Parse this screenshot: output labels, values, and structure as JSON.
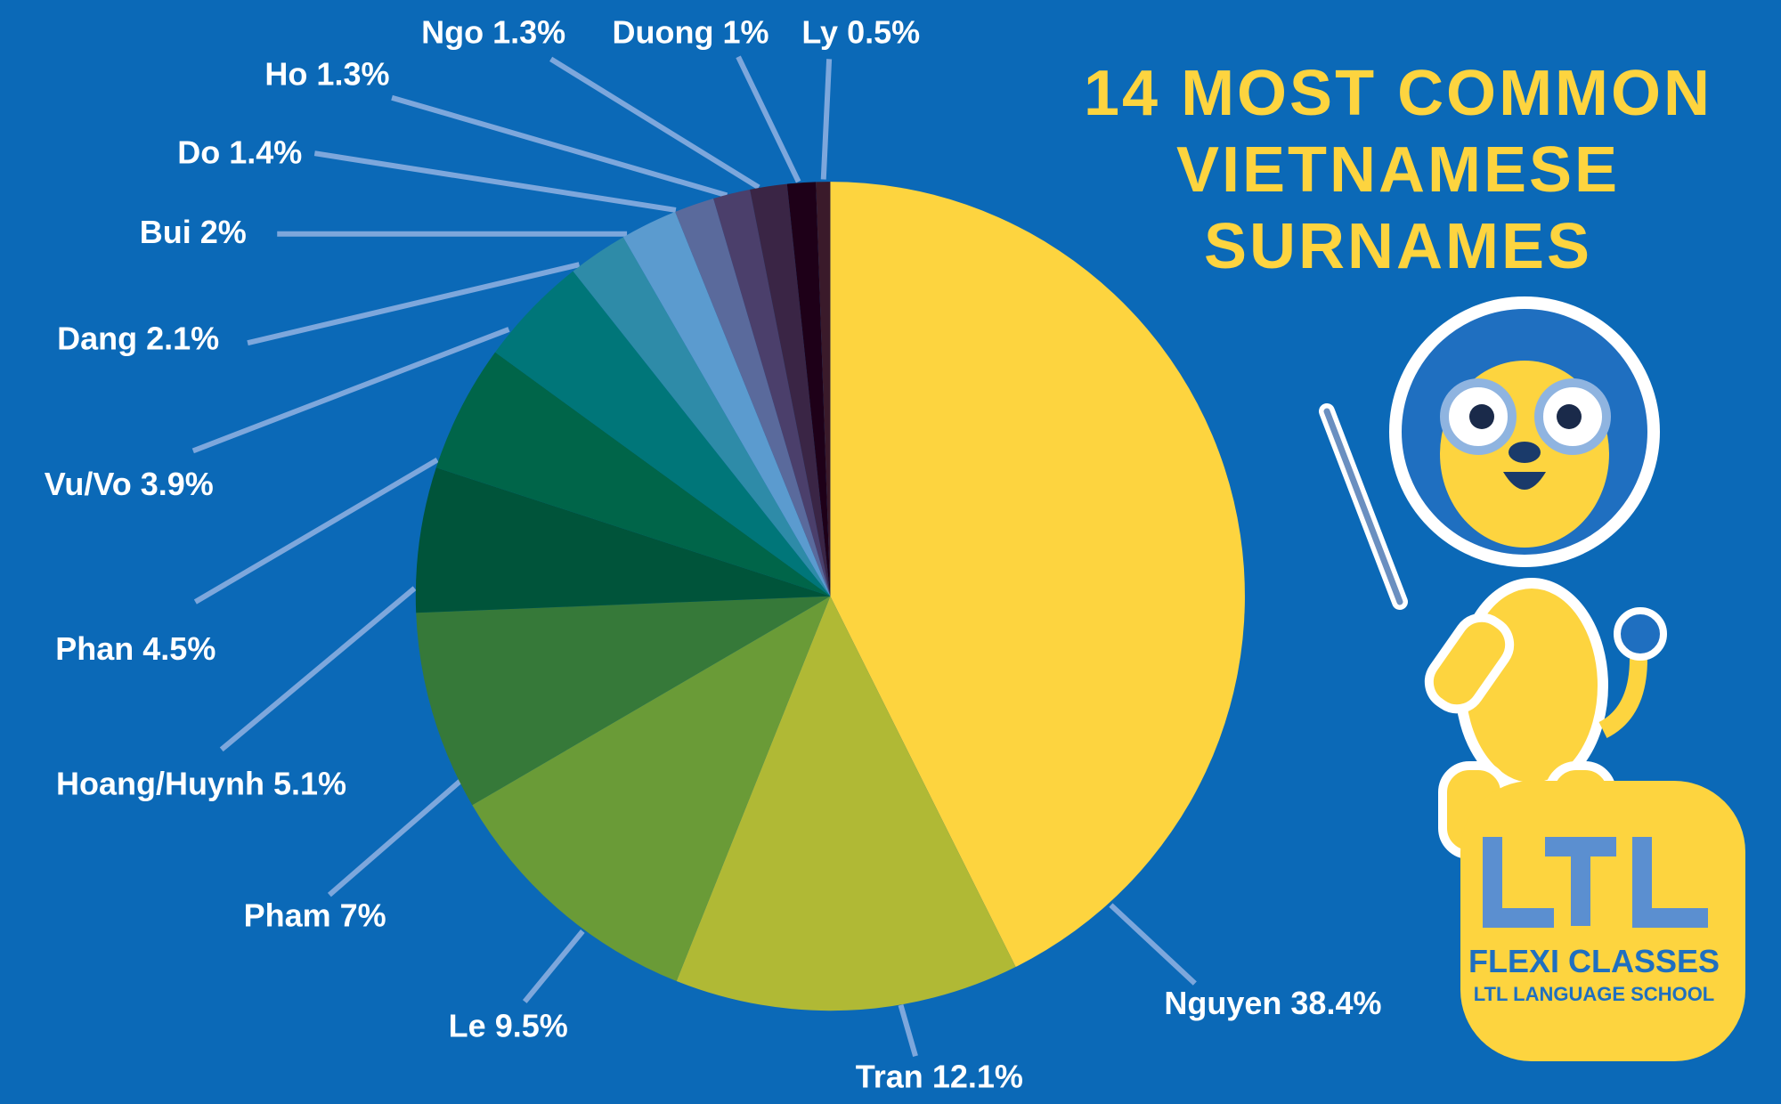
{
  "chart_data": {
    "type": "pie",
    "title": "14 MOST COMMON VIETNAMESE SURNAMES",
    "categories": [
      "Nguyen",
      "Tran",
      "Le",
      "Pham",
      "Hoang/Huynh",
      "Phan",
      "Vu/Vo",
      "Dang",
      "Bui",
      "Do",
      "Ho",
      "Ngo",
      "Duong",
      "Ly"
    ],
    "values": [
      38.4,
      12.1,
      9.5,
      7,
      5.1,
      4.5,
      3.9,
      2.1,
      2,
      1.4,
      1.3,
      1.3,
      1,
      0.5
    ],
    "value_labels": [
      "38.4%",
      "12.1%",
      "9.5%",
      "7%",
      "5.1%",
      "4.5%",
      "3.9%",
      "2.1%",
      "2%",
      "1.4%",
      "1.3%",
      "1.3%",
      "1%",
      "0.5%"
    ],
    "colors": [
      "#fdd43f",
      "#b0b935",
      "#6a9b37",
      "#367939",
      "#00543a",
      "#006549",
      "#007679",
      "#2e8ba8",
      "#5b9bcf",
      "#5a6a9c",
      "#4b3f6b",
      "#3a2545",
      "#1e0018",
      "#3a1a2a"
    ]
  },
  "logo": {
    "text": "FLEXI CLASSES",
    "subtext": "LTL LANGUAGE SCHOOL"
  }
}
